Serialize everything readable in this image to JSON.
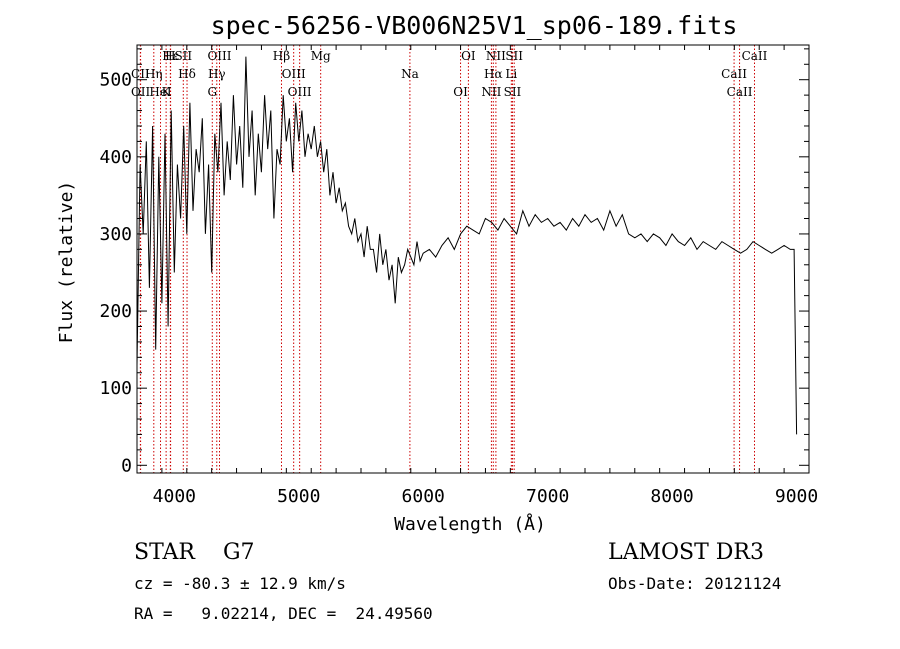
{
  "chart_data": {
    "type": "line",
    "title": "spec-56256-VB006N25V1_sp06-189.fits",
    "xlabel": "Wavelength (Å)",
    "ylabel": "Flux (relative)",
    "xlim": [
      3700,
      9100
    ],
    "ylim": [
      -10,
      545
    ],
    "grid": false,
    "xticks": [
      4000,
      5000,
      6000,
      7000,
      8000,
      9000
    ],
    "yticks": [
      0,
      100,
      200,
      300,
      400,
      500
    ],
    "series": [
      {
        "name": "spectrum",
        "color": "#000000",
        "x": [
          3700,
          3725,
          3750,
          3775,
          3800,
          3825,
          3850,
          3875,
          3900,
          3925,
          3950,
          3975,
          4000,
          4025,
          4050,
          4075,
          4100,
          4125,
          4150,
          4175,
          4200,
          4225,
          4250,
          4275,
          4300,
          4325,
          4350,
          4375,
          4400,
          4425,
          4450,
          4475,
          4500,
          4525,
          4550,
          4575,
          4600,
          4625,
          4650,
          4675,
          4700,
          4725,
          4750,
          4775,
          4800,
          4825,
          4850,
          4875,
          4900,
          4925,
          4950,
          4975,
          5000,
          5025,
          5050,
          5075,
          5100,
          5125,
          5150,
          5175,
          5200,
          5225,
          5250,
          5275,
          5300,
          5325,
          5350,
          5375,
          5400,
          5425,
          5450,
          5475,
          5500,
          5525,
          5550,
          5575,
          5600,
          5625,
          5650,
          5675,
          5700,
          5725,
          5750,
          5775,
          5800,
          5825,
          5850,
          5875,
          5900,
          5925,
          5950,
          5975,
          6000,
          6050,
          6100,
          6150,
          6200,
          6250,
          6300,
          6350,
          6400,
          6450,
          6500,
          6550,
          6600,
          6650,
          6700,
          6750,
          6800,
          6850,
          6900,
          6950,
          7000,
          7050,
          7100,
          7150,
          7200,
          7250,
          7300,
          7350,
          7400,
          7450,
          7500,
          7550,
          7600,
          7650,
          7700,
          7750,
          7800,
          7850,
          7900,
          7950,
          8000,
          8050,
          8100,
          8150,
          8200,
          8250,
          8300,
          8350,
          8400,
          8450,
          8500,
          8550,
          8600,
          8650,
          8700,
          8750,
          8800,
          8850,
          8900,
          8950,
          8980,
          9000
        ],
        "values": [
          130,
          390,
          300,
          420,
          230,
          440,
          150,
          400,
          210,
          430,
          180,
          460,
          250,
          390,
          320,
          440,
          300,
          470,
          330,
          410,
          380,
          450,
          300,
          390,
          250,
          430,
          380,
          470,
          350,
          420,
          370,
          480,
          390,
          440,
          360,
          530,
          400,
          460,
          350,
          430,
          380,
          480,
          410,
          460,
          320,
          410,
          390,
          480,
          420,
          450,
          380,
          470,
          420,
          460,
          400,
          430,
          410,
          440,
          400,
          420,
          380,
          410,
          350,
          380,
          340,
          360,
          330,
          340,
          310,
          300,
          320,
          290,
          300,
          270,
          310,
          280,
          280,
          250,
          300,
          260,
          280,
          240,
          260,
          210,
          270,
          250,
          260,
          280,
          270,
          260,
          290,
          265,
          275,
          280,
          270,
          285,
          295,
          280,
          300,
          310,
          305,
          300,
          320,
          315,
          305,
          320,
          310,
          300,
          330,
          310,
          325,
          315,
          320,
          310,
          315,
          305,
          320,
          310,
          325,
          315,
          320,
          305,
          330,
          310,
          325,
          300,
          295,
          300,
          290,
          300,
          295,
          285,
          300,
          290,
          285,
          295,
          280,
          290,
          285,
          280,
          290,
          285,
          280,
          275,
          280,
          290,
          285,
          280,
          275,
          280,
          285,
          280,
          280,
          40
        ]
      }
    ],
    "lines": [
      {
        "label": "Hε",
        "x": 3970
      },
      {
        "label": "Hη",
        "x": 3835
      },
      {
        "label": "K",
        "x": 3934
      },
      {
        "label": "H",
        "x": 3968
      },
      {
        "label": "Hδ",
        "x": 4102
      },
      {
        "label": "HeI",
        "x": 3889
      },
      {
        "label": "SII",
        "x": 4072
      },
      {
        "label": "CII",
        "x": 3727
      },
      {
        "label": "OII",
        "x": 3729
      },
      {
        "label": "OIII",
        "x": 4363
      },
      {
        "label": "Hγ",
        "x": 4341
      },
      {
        "label": "G",
        "x": 4305
      },
      {
        "label": "Hβ",
        "x": 4861
      },
      {
        "label": "OIII",
        "x": 4959
      },
      {
        "label": "OIII",
        "x": 5007
      },
      {
        "label": "Mg",
        "x": 5176
      },
      {
        "label": "Na",
        "x": 5893
      },
      {
        "label": "OI",
        "x": 6300
      },
      {
        "label": "OI",
        "x": 6363
      },
      {
        "label": "Hα",
        "x": 6563
      },
      {
        "label": "NII",
        "x": 6548
      },
      {
        "label": "NII",
        "x": 6584
      },
      {
        "label": "Li",
        "x": 6708
      },
      {
        "label": "SII",
        "x": 6717
      },
      {
        "label": "SII",
        "x": 6731
      },
      {
        "label": "CaII",
        "x": 8498
      },
      {
        "label": "CaII",
        "x": 8542
      },
      {
        "label": "CaII",
        "x": 8662
      }
    ]
  },
  "info": {
    "star_class": "STAR    G7",
    "survey": "LAMOST DR3",
    "redshift": "cz = -80.3 ± 12.9 km/s",
    "obs_date": "Obs-Date: 20121124",
    "coords": "RA =   9.02214, DEC =  24.49560"
  }
}
